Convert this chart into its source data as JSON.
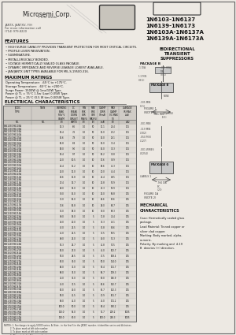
{
  "bg_color": "#ede9e3",
  "title_lines": [
    "1N6103-1N6137",
    "1N6139-1N6173",
    "1N6103A-1N6137A",
    "1N6139A-1N6173A"
  ],
  "company": "Microsemi Corp.",
  "features": [
    "HIGH SURGE CAPACITY PROVIDES TRANSIENT PROTECTION FOR MOST CRITICAL CIRCUITS.",
    "PROFILE LEVER PASSIVATION.",
    "SUBMINIATURE.",
    "METALLURGICALLY BONDED.",
    "VOLTAGE HERMETICALLY SEALED GLASS PACKAGE.",
    "DYNAMIC IMPEDANCE AND REVERSE LEAKAGE LOWEST AVAILABLE.",
    "JAN/JANTX UNIT TYPES AVAILABLE FOR MIL-S-19500-316."
  ],
  "max_ratings": [
    "Operating Temperature:  -65°C to +175°C.",
    "Storage Temperature:  -65°C to +200°C.",
    "Surge Power: 1500W @ 1ms/10W Type.",
    "Power @ TL = 75°C 1.5w (Low) 0.05W Type.",
    "Power @ TL = 25°C (0.5 W ties 0.005W Type."
  ],
  "table_data": [
    [
      "1N6103/1N6103A",
      "1N6139/1N6139A",
      "13.3",
      "6.6",
      "14.8",
      "1.0",
      "50",
      "11.1",
      "12.0",
      "1",
      "24.4",
      "19.3",
      "24.4",
      "20",
      "001"
    ],
    [
      "1N6104/1N6104A",
      "1N6140/1N6140A",
      "14.4",
      "7.2",
      "16.0",
      "1.0",
      "50",
      "12.0",
      "13.0",
      "1",
      "27.2",
      "20.9",
      "27.2",
      "20",
      "001"
    ],
    [
      "1N6105/1N6105A",
      "1N6141/1N6141A",
      "15.6",
      "7.8",
      "17.4",
      "1.0",
      "50",
      "13.0",
      "14.1",
      "1",
      "29.1",
      "22.8",
      "29.1",
      "20",
      "001"
    ],
    [
      "1N6106/1N6106A",
      "1N6142/1N6142A",
      "16.8",
      "8.4",
      "18.7",
      "1.0",
      "50",
      "14.0",
      "15.2",
      "1",
      "31.4",
      "24.4",
      "31.4",
      "20",
      "001"
    ],
    [
      "1N6107/1N6107A",
      "1N6143/1N6143A",
      "18.0",
      "9.0",
      "20.0",
      "1.0",
      "50",
      "15.0",
      "16.2",
      "1",
      "33.3",
      "26.0",
      "33.3",
      "20",
      "001"
    ],
    [
      "1N6108/1N6108A",
      "1N6144/1N6144A",
      "19.4",
      "9.7",
      "21.6",
      "1.0",
      "50",
      "16.2",
      "17.6",
      "1",
      "36.8",
      "28.0",
      "36.8",
      "20",
      "001"
    ],
    [
      "1N6109/1N6109A",
      "1N6145/1N6145A",
      "21.0",
      "10.5",
      "23.4",
      "1.0",
      "10",
      "17.6",
      "19.1",
      "1",
      "39.9",
      "30.4",
      "39.9",
      "20",
      "001"
    ],
    [
      "1N6110/1N6110A",
      "1N6146/1N6146A",
      "22.4",
      "11.2",
      "24.9",
      "1.0",
      "10",
      "18.6",
      "20.2",
      "1",
      "42.3",
      "32.4",
      "42.3",
      "20",
      "001"
    ],
    [
      "1N6111/1N6111A",
      "1N6147/1N6147A",
      "24.0",
      "12.0",
      "26.7",
      "1.0",
      "10",
      "20.0",
      "21.7",
      "1",
      "45.4",
      "34.7",
      "45.4",
      "20",
      "001"
    ],
    [
      "1N6112/1N6112A",
      "1N6148/1N6148A",
      "25.6",
      "12.8",
      "28.5",
      "1.0",
      "10",
      "21.4",
      "23.2",
      "1",
      "48.5",
      "37.0",
      "48.5",
      "20",
      "001"
    ],
    [
      "1N6113/1N6113A",
      "1N6149/1N6149A",
      "27.4",
      "13.7",
      "30.5",
      "1.0",
      "10",
      "22.8",
      "24.8",
      "1",
      "51.9",
      "39.6",
      "51.9",
      "20",
      "001"
    ],
    [
      "1N6114/1N6114A",
      "1N6150/1N6150A",
      "28.0",
      "14.0",
      "31.1",
      "1.0",
      "10",
      "23.3",
      "25.3",
      "1",
      "52.9",
      "40.4",
      "52.9",
      "20",
      "001"
    ],
    [
      "1N6115/1N6115A",
      "1N6151/1N6151A",
      "30.0",
      "15.0",
      "33.4",
      "1.0",
      "10",
      "25.0",
      "27.1",
      "1",
      "56.8",
      "43.3",
      "56.8",
      "20",
      "005"
    ],
    [
      "1N6116/1N6116A",
      "1N6152/1N6152A",
      "32.0",
      "16.0",
      "35.6",
      "1.0",
      "10",
      "26.6",
      "28.9",
      "1",
      "60.6",
      "46.2",
      "60.6",
      "20",
      "005"
    ],
    [
      "1N6117/1N6117A",
      "1N6153/1N6153A",
      "33.6",
      "16.8",
      "37.4",
      "1.0",
      "10",
      "28.0",
      "30.4",
      "1",
      "63.7",
      "48.6",
      "63.7",
      "20",
      "005"
    ],
    [
      "1N6118/1N6118A",
      "1N6154/1N6154A",
      "36.0",
      "18.0",
      "40.0",
      "1.0",
      "10",
      "30.0",
      "32.5",
      "1",
      "68.3",
      "52.1",
      "68.3",
      "20",
      "005"
    ],
    [
      "1N6119/1N6119A",
      "1N6155/1N6155A",
      "38.0",
      "19.0",
      "42.4",
      "1.0",
      "5",
      "31.8",
      "34.4",
      "1",
      "72.4",
      "55.2",
      "72.4",
      "5",
      "005"
    ],
    [
      "1N6120/1N6120A",
      "1N6156/1N6156A",
      "40.0",
      "20.0",
      "44.5",
      "1.0",
      "5",
      "33.3",
      "36.2",
      "1",
      "76.1",
      "58.1",
      "76.1",
      "5",
      "005"
    ],
    [
      "1N6121/1N6121A",
      "1N6157/1N6157A",
      "43.0",
      "21.5",
      "47.8",
      "1.0",
      "5",
      "35.8",
      "38.8",
      "1",
      "81.6",
      "62.2",
      "81.6",
      "5",
      "005"
    ],
    [
      "1N6122/1N6122A",
      "1N6158/1N6158A",
      "45.0",
      "22.5",
      "50.0",
      "1.0",
      "5",
      "37.5",
      "40.7",
      "1",
      "85.5",
      "65.2",
      "85.5",
      "5",
      "005"
    ],
    [
      "1N6123/1N6123A",
      "1N6159/1N6159A",
      "48.0",
      "24.0",
      "53.4",
      "1.0",
      "5",
      "40.0",
      "43.4",
      "1",
      "91.3",
      "69.6",
      "91.3",
      "5",
      "005"
    ],
    [
      "1N6124/1N6124A",
      "1N6160/1N6160A",
      "51.3",
      "25.7",
      "57.0",
      "1.0",
      "5",
      "42.8",
      "46.4",
      "1",
      "97.5",
      "74.3",
      "97.5",
      "5",
      "005"
    ],
    [
      "1N6125/1N6125A",
      "1N6161/1N6161A",
      "54.0",
      "27.0",
      "60.1",
      "1.0",
      "5",
      "45.0",
      "48.8",
      "1",
      "102.7",
      "78.3",
      "102.7",
      "5",
      "005"
    ],
    [
      "1N6126/1N6126A",
      "1N6162/1N6162A",
      "57.0",
      "28.5",
      "63.5",
      "1.0",
      "5",
      "47.5",
      "51.5",
      "1",
      "108.4",
      "82.6",
      "108.4",
      "5",
      "005"
    ],
    [
      "1N6127/1N6127A",
      "1N6163/1N6163A",
      "60.0",
      "30.0",
      "66.8",
      "1.0",
      "5",
      "50.0",
      "54.2",
      "1",
      "114.0",
      "87.0",
      "114.0",
      "5",
      "005"
    ],
    [
      "1N6128/1N6128A",
      "1N6164/1N6164A",
      "64.0",
      "32.0",
      "71.3",
      "1.0",
      "5",
      "53.4",
      "57.9",
      "1",
      "121.7",
      "92.8",
      "121.7",
      "5",
      "005"
    ],
    [
      "1N6129/1N6129A",
      "1N6165/1N6165A",
      "68.0",
      "34.0",
      "75.7",
      "1.0",
      "5",
      "56.7",
      "61.5",
      "1",
      "129.3",
      "98.6",
      "129.3",
      "5",
      "005"
    ],
    [
      "1N6130/1N6130A",
      "1N6166/1N6166A",
      "72.0",
      "36.0",
      "80.1",
      "1.0",
      "5",
      "60.0",
      "65.1",
      "1",
      "136.9",
      "104.4",
      "136.9",
      "5",
      "005"
    ],
    [
      "1N6131/1N6131A",
      "1N6167/1N6167A",
      "75.0",
      "37.5",
      "83.5",
      "1.0",
      "5",
      "62.6",
      "67.9",
      "1",
      "142.7",
      "108.8",
      "142.7",
      "5",
      "005"
    ],
    [
      "1N6132/1N6132A",
      "1N6168/1N6168A",
      "80.0",
      "40.0",
      "89.0",
      "1.0",
      "5",
      "66.7",
      "72.4",
      "1",
      "152.3",
      "116.1",
      "152.3",
      "5",
      "005"
    ],
    [
      "1N6133/1N6133A",
      "1N6169/1N6169A",
      "85.0",
      "42.5",
      "94.6",
      "1.0",
      "5",
      "70.9",
      "76.9",
      "1",
      "161.7",
      "123.3",
      "161.7",
      "5",
      "005"
    ],
    [
      "1N6134/1N6134A",
      "1N6170/1N6170A",
      "90.0",
      "45.0",
      "100.2",
      "1.0",
      "5",
      "75.0",
      "81.4",
      "1",
      "171.2",
      "130.5",
      "171.2",
      "5",
      "005"
    ],
    [
      "1N6135/1N6135A",
      "1N6171/1N6171A",
      "100.0",
      "50.0",
      "111.3",
      "1.0",
      "5",
      "83.4",
      "90.4",
      "1",
      "190.2",
      "145.0",
      "190.2",
      "5",
      "005"
    ],
    [
      "1N6136/1N6136A",
      "1N6172/1N6172A",
      "110.0",
      "55.0",
      "122.4",
      "1.0",
      "5",
      "91.7",
      "99.5",
      "1",
      "209.2",
      "159.5",
      "209.2",
      "5",
      "1005"
    ],
    [
      "1N6137/1N6137A",
      "1N6173/1N6173A",
      "120.0",
      "60.0",
      "133.6",
      "1.0",
      "5",
      "100.0",
      "108.6",
      "1",
      "228.3",
      "174.0",
      "228.3",
      "5",
      "1005"
    ]
  ],
  "col_headers_line1": [
    "JEDEC\nTYPE",
    "TWIN",
    "WORKING\nPEAK REV\nVOLTAGE",
    "DC\nBREAK\nDOWN\nVOLTAGE",
    "MINIMUM\nBREAKDOWN\nVOLTAGE",
    "MAXIMUM\nBREAKDOWN\nVOLTAGE",
    "MAX\nCLAMPING\nCURRENT",
    "MAX\nCLAMPING\nVOLTAGE",
    "MAX\nREVERSE\nLEAKAGE\nCURRENT"
  ],
  "col_headers_line2": [
    "NO.",
    "NO.",
    "VRWM(V)",
    "VBR(V)\n@IT",
    "VBR\nMIN(V)",
    "VBR\nMAX(V)",
    "IT(mA)",
    "VC\nMAX(V)",
    "IR MAX\n(uA)"
  ],
  "notes_lines": [
    "NOTES: 1. Surcharges to apply 50000 series, A. Note - in the first 5 in the JEDEC number, it identifies series and A devices.",
    "         2. To place mark at left side number.",
    "         3. To place mark at left side number.",
    "         4. Alternate (or) is E form numbering.",
    "         PLEASE STATE: Price from E table mode, Inc."
  ],
  "mech_lines": [
    "Case: Hermetically sealed glass",
    "package.",
    "Lead Material: Tinned copper or",
    "silver clad copper.",
    "Marking: Body marked, alpha-",
    "numeric.",
    "Polarity: By marking and  4-19",
    "B  denotes (+) direction."
  ]
}
